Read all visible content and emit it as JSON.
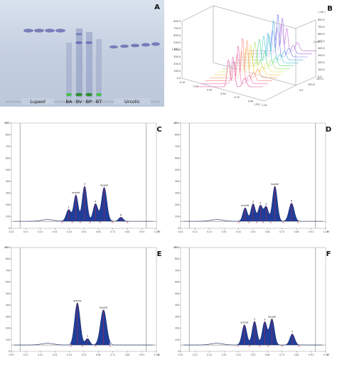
{
  "plate": {
    "panel_label": "A",
    "left_label": "Lupeol",
    "right_label": "Ursolic",
    "lane_labels": [
      "BA",
      "BV",
      "BP",
      "BT"
    ]
  },
  "densitogram3d": {
    "panel_label": "B",
    "y_unit": "[ AU ]",
    "z_unit": "[ mm ]",
    "x_unit": "[ Rf ]",
    "y_ticks": [
      "0.0",
      "100.0",
      "200.0",
      "300.0",
      "400.0",
      "500.0",
      "600.0",
      "700.0",
      "800.0"
    ],
    "x_ticks": [
      "-0.10",
      "0.10",
      "0.30",
      "0.50",
      "0.70",
      "0.90",
      "1.10"
    ],
    "z_ticks": [
      "0.0",
      "100.0",
      "200.0"
    ],
    "right_ticks": [
      "0.0",
      "100.0",
      "200.0",
      "300.0",
      "400.0",
      "500.0",
      "600.0",
      "700.0",
      "800.0"
    ]
  },
  "chart_data": [
    {
      "type": "line",
      "panel_label": "C",
      "ylabel": "AU",
      "xlabel": "Rf",
      "ylim": [
        0,
        900
      ],
      "xlim": [
        0.0,
        1.0
      ],
      "yticks": [
        0,
        100,
        200,
        300,
        400,
        500,
        600,
        700,
        800,
        900
      ],
      "xticks": [
        "0.01",
        "0.11",
        "0.21",
        "0.31",
        "0.41",
        "0.51",
        "0.61",
        "0.71",
        "0.81",
        "0.91",
        "1.01"
      ],
      "baseline": 60,
      "peaks": [
        {
          "label": "1",
          "rf": 0.395,
          "height": 160,
          "width": 0.022
        },
        {
          "label": "ursolic",
          "rf": 0.445,
          "height": 285,
          "width": 0.02
        },
        {
          "label": "3",
          "rf": 0.505,
          "height": 360,
          "width": 0.022
        },
        {
          "label": "4",
          "rf": 0.58,
          "height": 210,
          "width": 0.022
        },
        {
          "label": "lupeol",
          "rf": 0.64,
          "height": 350,
          "width": 0.024
        },
        {
          "label": "6",
          "rf": 0.755,
          "height": 95,
          "width": 0.02
        }
      ]
    },
    {
      "type": "line",
      "panel_label": "D",
      "ylabel": "AU",
      "xlabel": "Rf",
      "ylim": [
        0,
        900
      ],
      "xlim": [
        0.0,
        1.0
      ],
      "yticks": [
        0,
        100,
        200,
        300,
        400,
        500,
        600,
        700,
        800,
        900
      ],
      "xticks": [
        "0.01",
        "0.11",
        "0.21",
        "0.31",
        "0.41",
        "0.51",
        "0.61",
        "0.71",
        "0.81",
        "0.91",
        "1.01"
      ],
      "baseline": 60,
      "peaks": [
        {
          "label": "ursolic",
          "rf": 0.445,
          "height": 175,
          "width": 0.02
        },
        {
          "label": "2",
          "rf": 0.5,
          "height": 210,
          "width": 0.02
        },
        {
          "label": "3",
          "rf": 0.55,
          "height": 195,
          "width": 0.02
        },
        {
          "label": "4",
          "rf": 0.59,
          "height": 185,
          "width": 0.02
        },
        {
          "label": "lupeol",
          "rf": 0.65,
          "height": 360,
          "width": 0.022
        },
        {
          "label": "6",
          "rf": 0.765,
          "height": 215,
          "width": 0.024
        }
      ]
    },
    {
      "type": "line",
      "panel_label": "E",
      "ylabel": "AU",
      "xlabel": "Rf",
      "ylim": [
        0,
        900
      ],
      "xlim": [
        0.0,
        1.0
      ],
      "yticks": [
        0,
        100,
        200,
        300,
        400,
        500,
        600,
        700,
        800,
        900
      ],
      "xticks": [
        "0.01",
        "0.11",
        "0.21",
        "0.31",
        "0.41",
        "0.51",
        "0.61",
        "0.71",
        "0.81",
        "0.91",
        "1.01"
      ],
      "baseline": 55,
      "peaks": [
        {
          "label": "ursolic",
          "rf": 0.455,
          "height": 420,
          "width": 0.025
        },
        {
          "label": "2",
          "rf": 0.525,
          "height": 110,
          "width": 0.02
        },
        {
          "label": "lupeol",
          "rf": 0.635,
          "height": 360,
          "width": 0.028
        }
      ]
    },
    {
      "type": "line",
      "panel_label": "F",
      "ylabel": "AU",
      "xlabel": "Rf",
      "ylim": [
        0,
        900
      ],
      "xlim": [
        0.0,
        1.0
      ],
      "yticks": [
        0,
        100,
        200,
        300,
        400,
        500,
        600,
        700,
        800,
        900
      ],
      "xticks": [
        "0.01",
        "0.11",
        "0.21",
        "0.31",
        "0.41",
        "0.51",
        "0.61",
        "0.71",
        "0.81",
        "0.91",
        "1.01"
      ],
      "baseline": 55,
      "peaks": [
        {
          "label": "ursolic",
          "rf": 0.44,
          "height": 230,
          "width": 0.022
        },
        {
          "label": "2",
          "rf": 0.51,
          "height": 260,
          "width": 0.022
        },
        {
          "label": "3",
          "rf": 0.58,
          "height": 255,
          "width": 0.022
        },
        {
          "label": "lupeol",
          "rf": 0.63,
          "height": 280,
          "width": 0.022
        },
        {
          "label": "5",
          "rf": 0.77,
          "height": 150,
          "width": 0.022
        }
      ]
    }
  ]
}
